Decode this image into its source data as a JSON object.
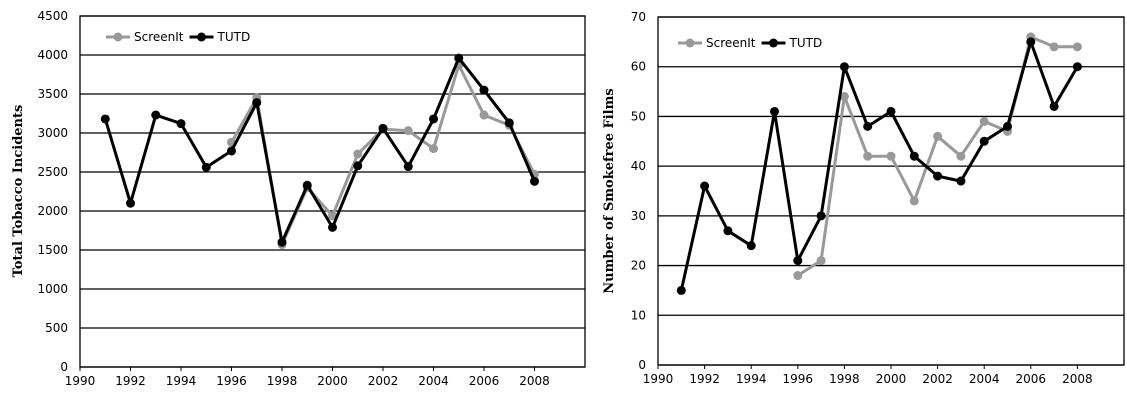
{
  "chart_data": [
    {
      "type": "line",
      "title": "",
      "xlabel": "",
      "ylabel": "Total Tobacco Incidents",
      "xlim": [
        1990,
        2010
      ],
      "ylim": [
        0,
        4500
      ],
      "x_ticks": [
        "1990",
        "1992",
        "1994",
        "1996",
        "1998",
        "2000",
        "2002",
        "2004",
        "2006",
        "2008"
      ],
      "y_ticks": [
        "0",
        "500",
        "1000",
        "1500",
        "2000",
        "2500",
        "3000",
        "3500",
        "4000",
        "4500"
      ],
      "grid": true,
      "legend_position": "top-left",
      "series": [
        {
          "name": "ScreenIt",
          "color": "#999999",
          "x": [
            1996,
            1997,
            1998,
            1999,
            2000,
            2001,
            2002,
            2003,
            2004,
            2005,
            2006,
            2007,
            2008
          ],
          "y": [
            2880,
            3450,
            1570,
            2300,
            1940,
            2730,
            3050,
            3030,
            2800,
            3870,
            3230,
            3100,
            2470
          ]
        },
        {
          "name": "TUTD",
          "color": "#000000",
          "x": [
            1991,
            1992,
            1993,
            1994,
            1995,
            1996,
            1997,
            1998,
            1999,
            2000,
            2001,
            2002,
            2003,
            2004,
            2005,
            2006,
            2007,
            2008
          ],
          "y": [
            3180,
            2100,
            3230,
            3120,
            2560,
            2770,
            3390,
            1600,
            2330,
            1790,
            2580,
            3060,
            2570,
            3180,
            3960,
            3550,
            3130,
            2380
          ]
        }
      ]
    },
    {
      "type": "line",
      "title": "",
      "xlabel": "",
      "ylabel": "Number of Smokefree Films",
      "xlim": [
        1990,
        2010
      ],
      "ylim": [
        0,
        70
      ],
      "x_ticks": [
        "1990",
        "1992",
        "1994",
        "1996",
        "1998",
        "2000",
        "2002",
        "2004",
        "2006",
        "2008"
      ],
      "y_ticks": [
        "0",
        "10",
        "20",
        "30",
        "40",
        "50",
        "60",
        "70"
      ],
      "grid": true,
      "legend_position": "top-left",
      "series": [
        {
          "name": "ScreenIt",
          "color": "#999999",
          "x": [
            1996,
            1997,
            1998,
            1999,
            2000,
            2001,
            2002,
            2003,
            2004,
            2005,
            2006,
            2007,
            2008
          ],
          "y": [
            18,
            21,
            54,
            42,
            42,
            33,
            46,
            42,
            49,
            47,
            66,
            64,
            64
          ]
        },
        {
          "name": "TUTD",
          "color": "#000000",
          "x": [
            1991,
            1992,
            1993,
            1994,
            1995,
            1996,
            1997,
            1998,
            1999,
            2000,
            2001,
            2002,
            2003,
            2004,
            2005,
            2006,
            2007,
            2008
          ],
          "y": [
            15,
            36,
            27,
            24,
            51,
            21,
            30,
            60,
            48,
            51,
            42,
            38,
            37,
            45,
            48,
            65,
            52,
            60
          ]
        }
      ]
    }
  ]
}
